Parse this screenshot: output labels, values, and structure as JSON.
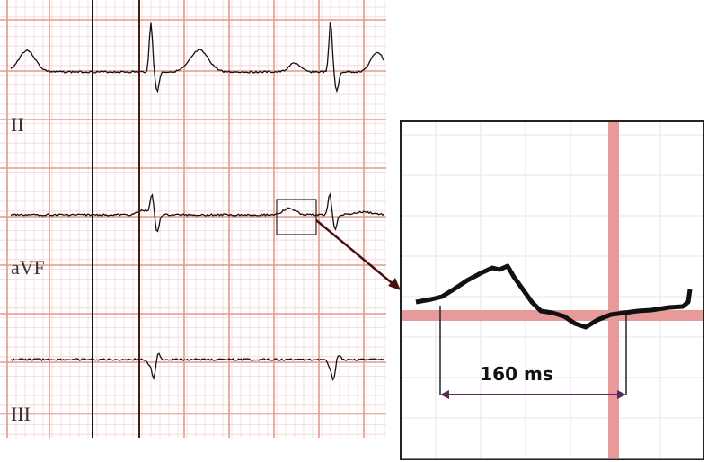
{
  "leads": [
    {
      "label": "II"
    },
    {
      "label": "aVF"
    },
    {
      "label": "III"
    }
  ],
  "annotation": {
    "label": "160 ms"
  }
}
